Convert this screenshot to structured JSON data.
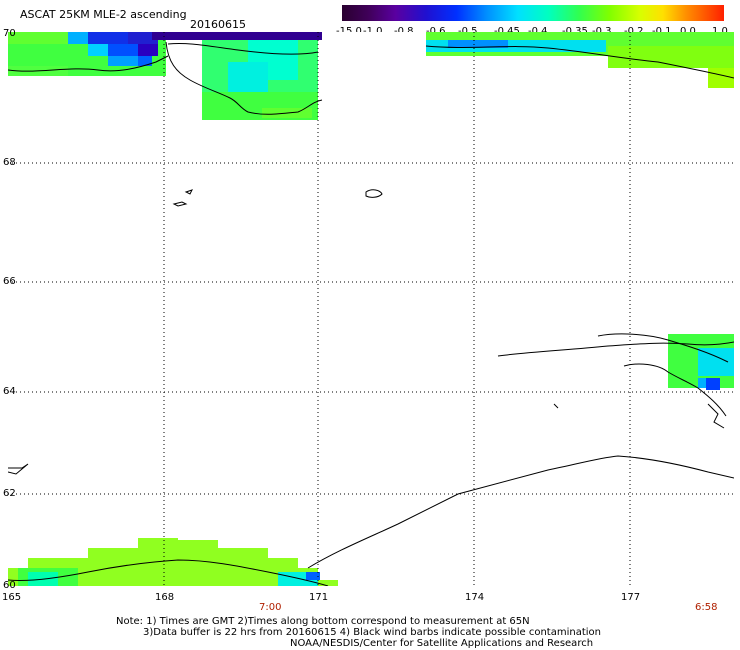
{
  "header": {
    "title": "ASCAT 25KM MLE-2 ascending",
    "date": "20160615"
  },
  "colorbar": {
    "labels": [
      "-15.0",
      "-1.0",
      "-0.8",
      "-0.6",
      "-0.5",
      "-0.45",
      "-0.4",
      "-0.35",
      "-0.3",
      "-0.2",
      "-0.1",
      "0.0",
      "1.0"
    ],
    "colors": [
      "#2a0030",
      "#40005a",
      "#5a00a0",
      "#3010c8",
      "#0020ff",
      "#0060ff",
      "#00a0ff",
      "#00d8ff",
      "#00ffe0",
      "#00ff90",
      "#40ff40",
      "#a0ff00",
      "#ffff00",
      "#ffb000",
      "#ff6000",
      "#ff2000"
    ]
  },
  "map": {
    "lat_labels": [
      "70",
      "68",
      "66",
      "64",
      "62",
      "60"
    ],
    "lon_labels": [
      "165",
      "168",
      "171",
      "174",
      "177"
    ],
    "time_labels": [
      "7:00",
      "6:58"
    ]
  },
  "notes": {
    "line1": "Note: 1) Times are GMT 2)Times along bottom correspond to measurement at 65N",
    "line2": "3)Data buffer is 22 hrs from 20160615 4) Black wind barbs indicate possible contamination",
    "line3": "NOAA/NESDIS/Center for Satellite Applications and Research"
  }
}
